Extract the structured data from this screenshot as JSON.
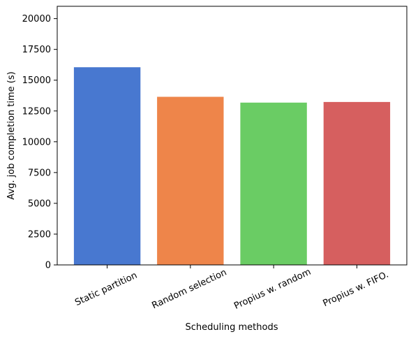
{
  "chart_data": {
    "type": "bar",
    "categories": [
      "Static partition",
      "Random selection",
      "Propius w. random",
      "Propius w. FIFO."
    ],
    "values": [
      16050,
      13650,
      13180,
      13230
    ],
    "colors": [
      "#4878d0",
      "#ee854a",
      "#6acc64",
      "#d65f5f"
    ],
    "title": "",
    "xlabel": "Scheduling methods",
    "ylabel": "Avg. job completion time (s)",
    "ylim": [
      0,
      21000
    ],
    "yticks": [
      0,
      2500,
      5000,
      7500,
      10000,
      12500,
      15000,
      17500,
      20000
    ],
    "xtick_rotation_deg": -25,
    "grid": false,
    "legend": "none"
  }
}
